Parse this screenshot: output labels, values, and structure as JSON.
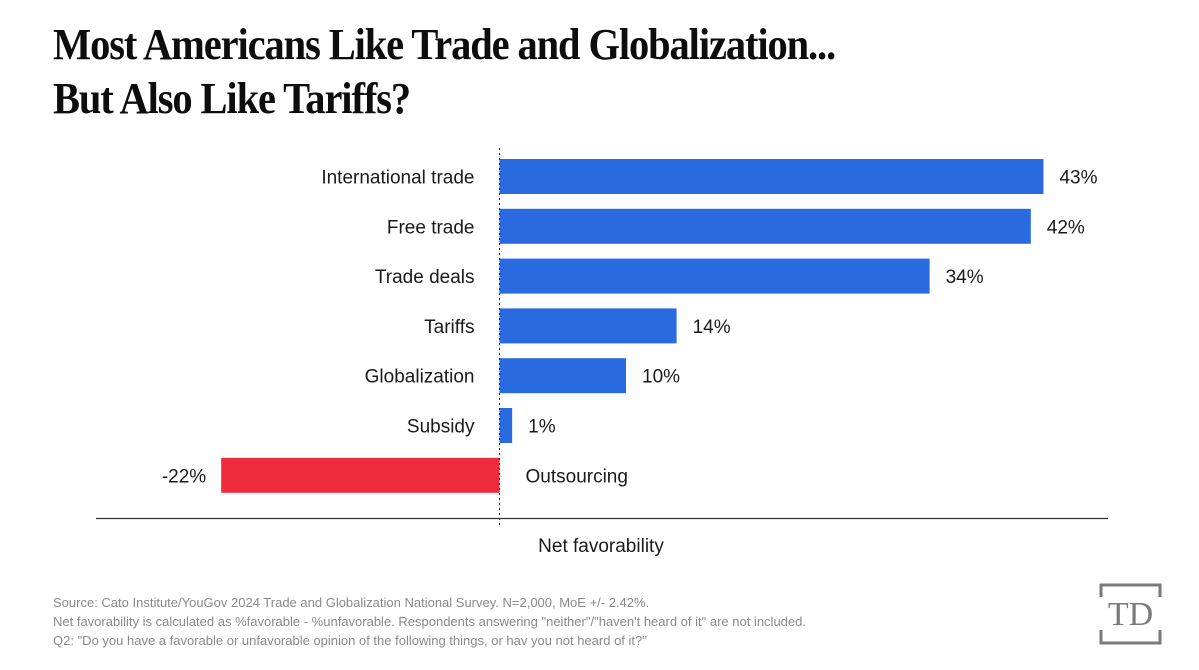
{
  "title": {
    "line1": "Most Americans Like Trade and Globalization...",
    "line2": "But Also Like Tariffs?"
  },
  "chart_data": {
    "type": "bar",
    "orientation": "horizontal",
    "title": "Most Americans Like Trade and Globalization... But Also Like Tariffs?",
    "xlabel": "Net favorability",
    "ylabel": "",
    "unit": "%",
    "categories": [
      "International trade",
      "Free trade",
      "Trade deals",
      "Tariffs",
      "Globalization",
      "Subsidy",
      "Outsourcing"
    ],
    "values": [
      43,
      42,
      34,
      14,
      10,
      1,
      -22
    ],
    "value_labels": [
      "43%",
      "42%",
      "34%",
      "14%",
      "10%",
      "1%",
      "-22%"
    ],
    "xlim": [
      -30,
      48
    ],
    "grid": false,
    "zero_line": "dotted",
    "colors": {
      "positive": "#2a6ae0",
      "negative": "#ee2a3d"
    }
  },
  "notes": {
    "source": "Source: Cato Institute/YouGov 2024 Trade and Globalization National Survey. N=2,000, MoE +/- 2.42%.",
    "method": "Net favorability is calculated as %favorable - %unfavorable. Respondents answering \"neither\"/\"haven't heard of it\" are not included.",
    "question": "Q2: \"Do you have a favorable or unfavorable opinion of the following things, or hav you not heard of it?\""
  },
  "logo": {
    "text": "TD",
    "color": "#7a7a7a"
  }
}
